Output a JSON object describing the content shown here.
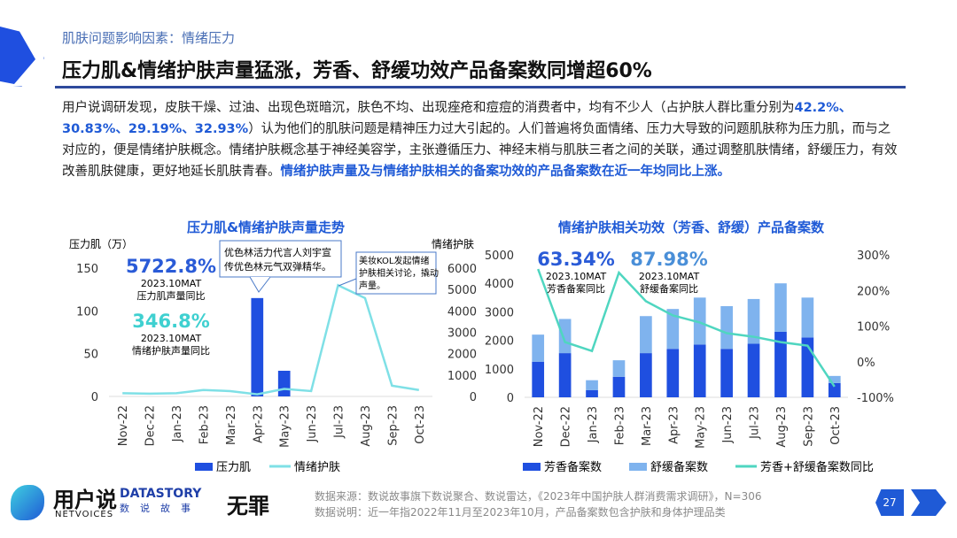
{
  "header": {
    "subtitle": "肌肤问题影响因素：情绪压力",
    "title": "压力肌&情绪护肤声量猛涨，芳香、舒缓功效产品备案数同增超60%"
  },
  "body": [
    {
      "t": "用户说调研发现，皮肤干燥、过油、出现色斑暗沉，肤色不均、出现痤疮和痘痘的消费者中，均有不少人（占护肤人群比重分别为",
      "h": false
    },
    {
      "t": "42.2%、30.83%、29.19%、32.93%",
      "h": true
    },
    {
      "t": "）认为他们的肌肤问题是精神压力过大引起的。人们普遍将负面情绪、压力大导致的问题肌肤称为压力肌，而与之对应的，便是情绪护肤概念。情绪护肤概念基于神经美容学，主张遵循压力、神经末梢与肌肤三者之间的关联，通过调整肌肤情绪，舒缓压力，有效改善肌肤健康，更好地延长肌肤青春。",
      "h": false
    },
    {
      "t": "情绪护肤声量及与情绪护肤相关的备案功效的产品备案数在近一年均同比上涨。",
      "h": true
    }
  ],
  "chart_data": [
    {
      "type": "bar+line",
      "title": "压力肌&情绪护肤声量走势",
      "ylabel": "压力肌（万）",
      "y2label": "情绪护肤",
      "categories": [
        "Nov-22",
        "Dec-22",
        "Jan-23",
        "Feb-23",
        "Mar-23",
        "Apr-23",
        "May-23",
        "Jun-23",
        "Jul-23",
        "Aug-23",
        "Sep-23",
        "Oct-23"
      ],
      "ylim": [
        0,
        150
      ],
      "yticks": [
        "0",
        "50",
        "100",
        "150"
      ],
      "y2lim": [
        0,
        6000
      ],
      "y2ticks": [
        "0",
        "1000",
        "2000",
        "3000",
        "4000",
        "5000",
        "6000"
      ],
      "series": [
        {
          "name": "压力肌",
          "kind": "bar",
          "color": "#1f4fe0",
          "values": [
            0,
            0,
            0,
            0,
            0,
            115,
            30,
            0,
            0,
            0,
            0,
            0
          ]
        },
        {
          "name": "情绪护肤",
          "kind": "line",
          "axis": "right",
          "color": "#7fe0e6",
          "values": [
            150,
            130,
            150,
            300,
            250,
            100,
            350,
            250,
            5200,
            4600,
            500,
            300
          ]
        }
      ],
      "annotations": [
        {
          "value": "5722.8%",
          "l1": "2023.10MAT",
          "l2": "压力肌声量同比",
          "color": "#2a5bd7"
        },
        {
          "value": "346.8%",
          "l1": "2023.10MAT",
          "l2": "情绪护肤声量同比",
          "color": "#3fd0d0"
        }
      ],
      "callouts": [
        "优色林活力代言人刘宇宣传优色林元气双弹精华。",
        "美妆KOL发起情绪护肤相关讨论，撬动声量。"
      ]
    },
    {
      "type": "stacked-bar+line",
      "title": "情绪护肤相关功效（芳香、舒缓）产品备案数",
      "categories": [
        "Nov-22",
        "Dec-22",
        "Jan-23",
        "Feb-23",
        "Mar-23",
        "Apr-23",
        "May-23",
        "Jun-23",
        "Jul-23",
        "Aug-23",
        "Sep-23",
        "Oct-23"
      ],
      "ylim": [
        0,
        5000
      ],
      "yticks": [
        "0",
        "1000",
        "2000",
        "3000",
        "4000",
        "5000"
      ],
      "y2lim": [
        -100,
        300
      ],
      "y2ticks": [
        "-100%",
        "0%",
        "100%",
        "200%",
        "300%"
      ],
      "series": [
        {
          "name": "芳香备案数",
          "kind": "bar",
          "color": "#1f4fe0",
          "values": [
            1250,
            1550,
            250,
            720,
            1550,
            1700,
            1850,
            1700,
            1880,
            2300,
            2100,
            500
          ]
        },
        {
          "name": "舒缓备案数",
          "kind": "bar",
          "color": "#7fb3ee",
          "values": [
            950,
            1200,
            350,
            580,
            1300,
            1400,
            1650,
            1500,
            1570,
            1700,
            1400,
            250
          ]
        },
        {
          "name": "芳香+舒缓备案数同比",
          "kind": "line",
          "axis": "right",
          "color": "#4fd6c0",
          "values": [
            260,
            55,
            30,
            250,
            170,
            130,
            110,
            80,
            70,
            55,
            45,
            -70
          ]
        }
      ],
      "annotations": [
        {
          "value": "63.34%",
          "l1": "2023.10MAT",
          "l2": "芳香备案同比",
          "color": "#2a5bd7"
        },
        {
          "value": "87.98%",
          "l1": "2023.10MAT",
          "l2": "舒缓备案同比",
          "color": "#4a8fd8"
        }
      ]
    }
  ],
  "footer": {
    "source": "数据来源：数说故事旗下数说聚合、数说雷达，《2023年中国护肤人群消费需求调研》，N=306",
    "note": "数据说明：近一年指2022年11月至2023年10月，产品备案数包含护肤和身体护理品类",
    "page": "27",
    "logo_netvoices_cn": "用户说",
    "logo_netvoices_en": "NETVOICES",
    "logo_datastory": "DATASTORY",
    "logo_datastory_cn": "数说故事",
    "logo_wuzui": "无罪"
  }
}
